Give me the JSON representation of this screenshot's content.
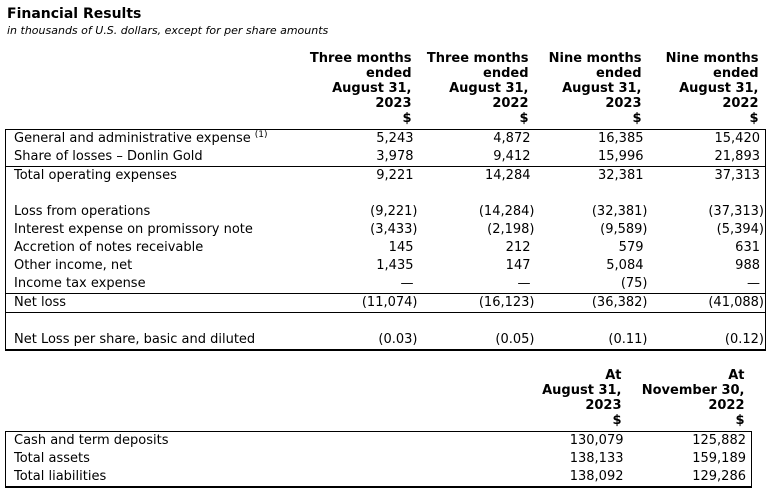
{
  "header": {
    "title": "Financial Results",
    "subtitle": "in thousands of U.S. dollars, except for per share amounts"
  },
  "income_statement": {
    "columns": [
      {
        "heading": ""
      },
      {
        "heading": "Three months\nended\nAugust 31,\n2023\n$"
      },
      {
        "heading": "Three months\nended\nAugust 31,\n2022\n$"
      },
      {
        "heading": "Nine months\nended\nAugust 31,\n2023\n$"
      },
      {
        "heading": "Nine months\nended\nAugust 31,\n2022\n$"
      }
    ],
    "rows": [
      {
        "label": "General and administrative expense",
        "footnote": "(1)",
        "values": [
          "5,243",
          "4,872",
          "16,385",
          "15,420"
        ]
      },
      {
        "label": "Share of losses – Donlin Gold",
        "values": [
          "3,978",
          "9,412",
          "15,996",
          "21,893"
        ],
        "rule_below": true
      },
      {
        "label": "Total operating expenses",
        "values": [
          "9,221",
          "14,284",
          "32,381",
          "37,313"
        ]
      },
      {
        "label": "",
        "values": [
          "",
          "",
          "",
          ""
        ],
        "spacer": true
      },
      {
        "label": "Loss from operations",
        "values": [
          "(9,221)",
          "(14,284)",
          "(32,381)",
          "(37,313)"
        ]
      },
      {
        "label": "Interest expense on promissory note",
        "values": [
          "(3,433)",
          "(2,198)",
          "(9,589)",
          "(5,394)"
        ]
      },
      {
        "label": "Accretion of notes receivable",
        "values": [
          "145",
          "212",
          "579",
          "631"
        ]
      },
      {
        "label": "Other income, net",
        "values": [
          "1,435",
          "147",
          "5,084",
          "988"
        ]
      },
      {
        "label": "Income tax expense",
        "values": [
          "—",
          "—",
          "(75)",
          "—"
        ],
        "rule_below": true
      },
      {
        "label": "Net loss",
        "values": [
          "(11,074)",
          "(16,123)",
          "(36,382)",
          "(41,088)"
        ],
        "rule_below": true
      },
      {
        "label": "",
        "values": [
          "",
          "",
          "",
          ""
        ],
        "spacer": true
      },
      {
        "label": "Net Loss per share, basic and diluted",
        "values": [
          "(0.03)",
          "(0.05)",
          "(0.11)",
          "(0.12)"
        ]
      }
    ]
  },
  "balance_sheet": {
    "columns": [
      {
        "heading": ""
      },
      {
        "heading": "At\nAugust 31,\n2023\n$"
      },
      {
        "heading": "At\nNovember 30,\n2022\n$"
      }
    ],
    "rows": [
      {
        "label": "Cash and term deposits",
        "values": [
          "130,079",
          "125,882"
        ]
      },
      {
        "label": "Total assets",
        "values": [
          "138,133",
          "159,189"
        ]
      },
      {
        "label": "Total liabilities",
        "values": [
          "138,092",
          "129,286"
        ]
      }
    ]
  },
  "colors": {
    "text": "#000000",
    "background": "#ffffff",
    "border": "#000000"
  }
}
